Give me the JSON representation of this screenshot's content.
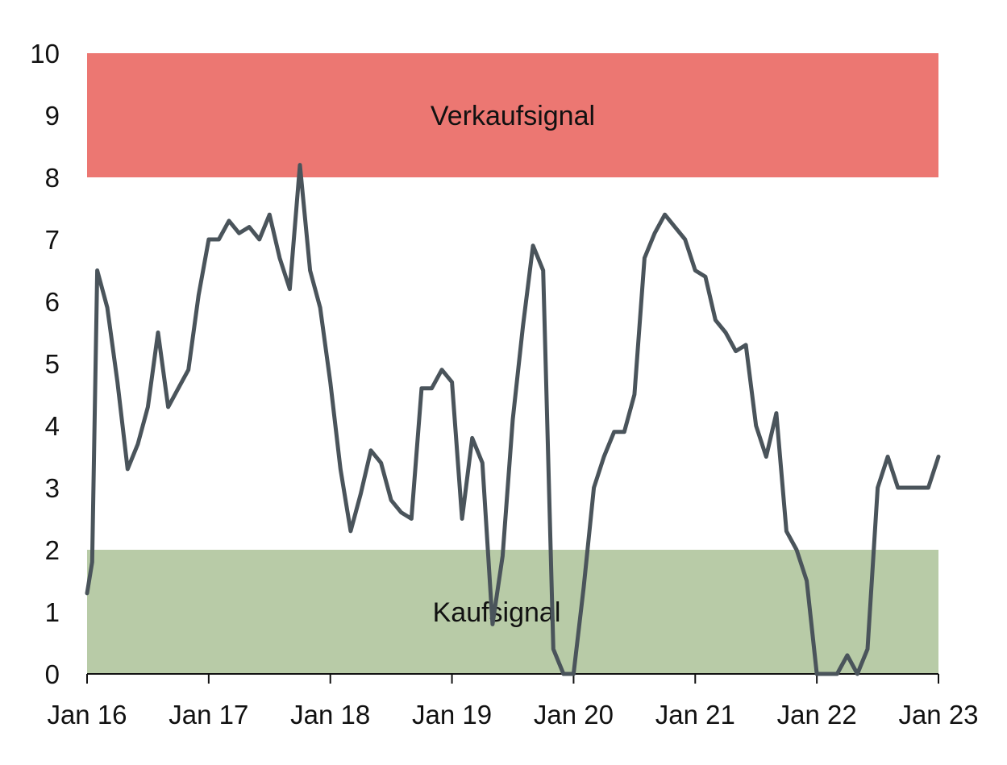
{
  "chart_data": {
    "type": "line",
    "title": "",
    "xlabel": "",
    "ylabel": "",
    "ylim": [
      0,
      10
    ],
    "yticks": [
      0,
      1,
      2,
      3,
      4,
      5,
      6,
      7,
      8,
      9,
      10
    ],
    "ytick_labels": [
      "0",
      "1",
      "2",
      "3",
      "4",
      "5",
      "6",
      "7",
      "8",
      "9",
      "10"
    ],
    "xlim": [
      "2016-01",
      "2023-01"
    ],
    "xticks": [
      "2016-01",
      "2017-01",
      "2018-01",
      "2019-01",
      "2020-01",
      "2021-01",
      "2022-01",
      "2023-01"
    ],
    "xtick_labels": [
      "Jan 16",
      "Jan 17",
      "Jan 18",
      "Jan 19",
      "Jan 20",
      "Jan 21",
      "Jan 22",
      "Jan 23"
    ],
    "grid": false,
    "bands": [
      {
        "label": "Verkaufsignal",
        "from": 8,
        "to": 10,
        "color": "#ec7772"
      },
      {
        "label": "Kaufsignal",
        "from": 0,
        "to": 2,
        "color": "#b8cba7"
      }
    ],
    "series_color": "#4a545b",
    "series": [
      {
        "x": [
          "2016-01",
          "2016-01",
          "2016-02",
          "2016-03",
          "2016-04",
          "2016-05",
          "2016-06",
          "2016-07",
          "2016-08",
          "2016-08",
          "2016-09",
          "2016-10",
          "2016-11",
          "2016-12",
          "2017-01",
          "2017-02",
          "2017-03",
          "2017-04",
          "2017-05",
          "2017-06",
          "2017-07",
          "2017-08",
          "2017-09",
          "2017-10",
          "2017-11",
          "2017-12",
          "2018-01",
          "2018-02",
          "2018-03",
          "2018-04",
          "2018-05",
          "2018-06",
          "2018-07",
          "2018-08",
          "2018-09",
          "2018-10",
          "2018-11",
          "2018-12",
          "2019-01",
          "2019-02",
          "2019-03",
          "2019-04",
          "2019-05",
          "2019-06",
          "2019-07",
          "2019-08",
          "2019-09",
          "2019-10",
          "2019-11",
          "2019-12",
          "2020-01",
          "2020-02",
          "2020-03",
          "2020-04",
          "2020-05",
          "2020-06",
          "2020-07",
          "2020-08",
          "2020-09",
          "2020-10",
          "2020-11",
          "2020-12",
          "2021-01",
          "2021-02",
          "2021-03",
          "2021-04",
          "2021-05",
          "2021-06",
          "2021-07",
          "2021-08",
          "2021-09",
          "2021-10",
          "2021-11",
          "2021-12",
          "2022-01",
          "2022-02",
          "2022-03",
          "2022-04",
          "2022-05",
          "2022-06",
          "2022-07",
          "2022-08",
          "2022-09",
          "2022-10",
          "2022-11",
          "2022-12",
          "2023-01"
        ],
        "y": [
          1.3,
          1.8,
          6.5,
          5.9,
          4.7,
          3.3,
          3.7,
          4.3,
          5.5,
          4.9,
          4.3,
          4.6,
          4.9,
          6.1,
          7.0,
          7.0,
          7.3,
          7.1,
          7.2,
          7.0,
          7.4,
          6.7,
          6.2,
          8.2,
          6.5,
          5.9,
          4.7,
          3.3,
          2.3,
          2.9,
          3.6,
          3.4,
          2.8,
          2.6,
          2.5,
          4.6,
          4.6,
          4.9,
          4.7,
          2.5,
          3.8,
          3.4,
          0.8,
          1.9,
          4.1,
          5.6,
          6.9,
          6.5,
          0.4,
          0.0,
          0.0,
          1.4,
          3.0,
          3.5,
          3.9,
          3.9,
          4.5,
          6.7,
          7.1,
          7.4,
          7.2,
          7.0,
          6.5,
          6.4,
          5.7,
          5.5,
          5.2,
          5.3,
          4.0,
          3.5,
          4.2,
          2.3,
          2.0,
          1.5,
          0.0,
          0.0,
          0.0,
          0.3,
          0.0,
          0.4,
          3.0,
          3.5,
          3.0,
          3.0,
          3.0,
          3.0,
          3.5
        ]
      }
    ]
  }
}
